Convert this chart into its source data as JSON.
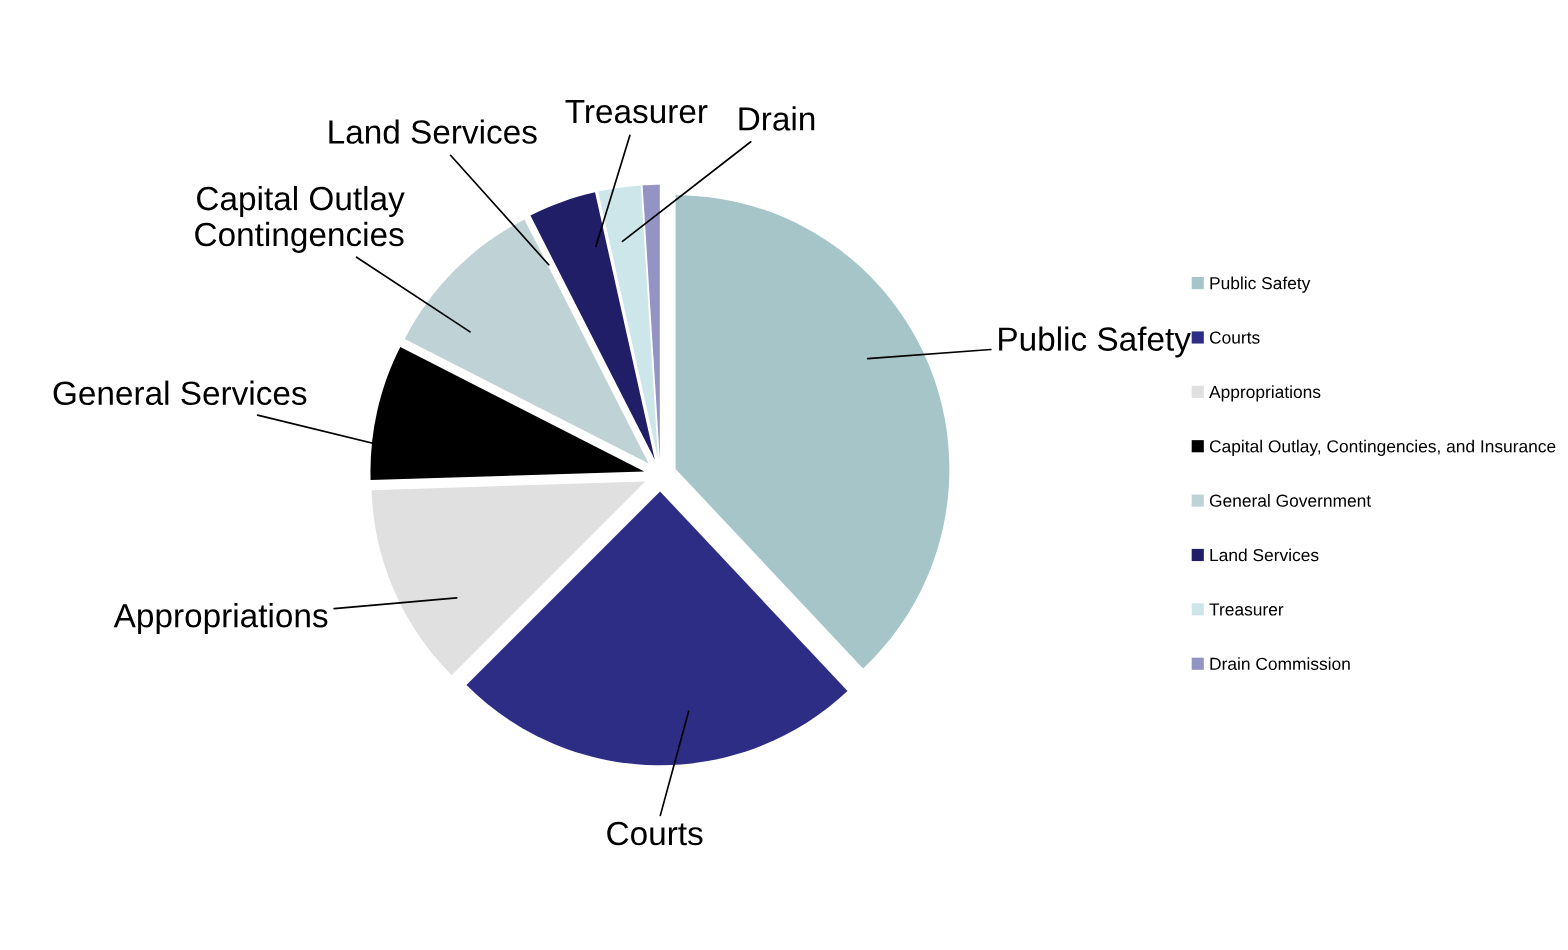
{
  "chart_data": {
    "type": "pie",
    "categories": [
      "Public Safety",
      "Courts",
      "Appropriations",
      "Capital Outlay, Contingencies, and Insurance",
      "General Government",
      "Land Services",
      "Treasurer",
      "Drain Commission"
    ],
    "values": [
      38,
      24.5,
      12,
      8,
      10,
      4,
      2.5,
      1
    ],
    "colors": [
      "#a5c5c8",
      "#2e2d85",
      "#e0e0e0",
      "#000000",
      "#bfd3d6",
      "#1f1e66",
      "#cde6ea",
      "#9494c4"
    ],
    "annotations": [
      "Public Safety",
      "Courts",
      "Appropriations",
      "General Services",
      "Capital Outlay\nContingencies",
      "Land Services",
      "Treasurer",
      "Drain"
    ],
    "legend": "right"
  }
}
